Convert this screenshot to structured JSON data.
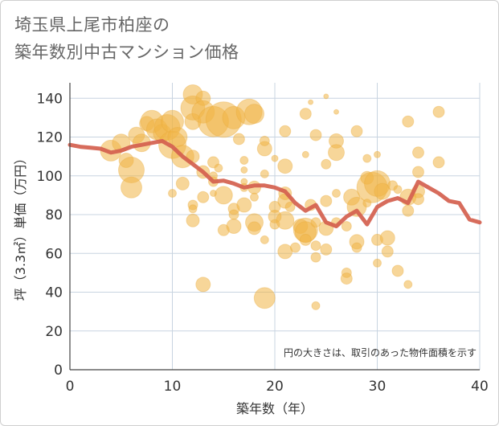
{
  "title_line1": "埼玉県上尾市柏座の",
  "title_line2": "築年数別中古マンション価格",
  "chart_data": {
    "type": "scatter",
    "xlabel": "築年数（年）",
    "ylabel": "坪（3.3㎡）単価（万円）",
    "xlim": [
      0,
      40
    ],
    "ylim": [
      0,
      148
    ],
    "xticks": [
      "0",
      "10",
      "20",
      "30",
      "40"
    ],
    "yticks": [
      "0",
      "20",
      "40",
      "60",
      "80",
      "100",
      "120",
      "140"
    ],
    "note": "円の大きさは、取引のあった物件面積を示す",
    "colors": {
      "bubble": "#f1b545",
      "line": "#d4604e",
      "grid": "#c8d4e0"
    },
    "bubbles": [
      [
        4,
        113,
        13
      ],
      [
        5,
        117,
        11
      ],
      [
        5.5,
        108,
        9
      ],
      [
        6,
        103,
        16
      ],
      [
        6,
        94,
        13
      ],
      [
        6.5,
        121,
        10
      ],
      [
        7,
        117,
        11
      ],
      [
        7.5,
        127,
        9
      ],
      [
        8,
        128,
        14
      ],
      [
        8.5,
        124,
        13
      ],
      [
        9,
        122,
        11
      ],
      [
        9.5,
        125,
        16
      ],
      [
        10,
        128,
        14
      ],
      [
        10,
        116,
        17
      ],
      [
        10.5,
        120,
        12
      ],
      [
        10,
        91,
        5
      ],
      [
        11,
        110,
        14
      ],
      [
        11,
        96,
        8
      ],
      [
        12,
        142,
        12
      ],
      [
        12,
        135,
        15
      ],
      [
        12,
        128,
        10
      ],
      [
        12,
        110,
        8
      ],
      [
        12,
        85,
        6
      ],
      [
        12,
        83,
        5
      ],
      [
        12,
        77,
        8
      ],
      [
        13,
        140,
        9
      ],
      [
        13,
        133,
        14
      ],
      [
        13,
        102,
        8
      ],
      [
        13,
        89,
        7
      ],
      [
        13,
        44,
        9
      ],
      [
        14,
        128,
        19
      ],
      [
        14,
        107,
        7
      ],
      [
        14,
        100,
        5
      ],
      [
        14,
        97,
        6
      ],
      [
        14,
        91,
        4
      ],
      [
        14.5,
        104,
        5
      ],
      [
        15,
        129,
        22
      ],
      [
        15,
        90,
        11
      ],
      [
        15,
        72,
        7
      ],
      [
        16,
        130,
        14
      ],
      [
        16,
        83,
        7
      ],
      [
        16,
        80,
        6
      ],
      [
        16,
        74,
        9
      ],
      [
        16.5,
        119,
        7
      ],
      [
        17,
        108,
        5
      ],
      [
        17,
        103,
        4
      ],
      [
        17,
        97,
        4
      ],
      [
        17,
        85,
        9
      ],
      [
        17,
        94,
        5
      ],
      [
        17.5,
        133,
        16
      ],
      [
        18,
        132,
        12
      ],
      [
        18,
        94,
        8
      ],
      [
        18,
        89,
        5
      ],
      [
        18,
        76,
        11
      ],
      [
        18,
        73,
        8
      ],
      [
        19,
        37,
        13
      ],
      [
        19,
        67,
        5
      ],
      [
        19,
        101,
        5
      ],
      [
        19,
        114,
        9
      ],
      [
        19,
        118,
        6
      ],
      [
        20,
        84,
        7
      ],
      [
        20,
        79,
        8
      ],
      [
        20,
        75,
        6
      ],
      [
        20,
        109,
        4
      ],
      [
        21,
        123,
        7
      ],
      [
        21,
        105,
        9
      ],
      [
        21,
        91,
        8
      ],
      [
        21,
        87,
        9
      ],
      [
        21,
        77,
        11
      ],
      [
        21,
        61,
        9
      ],
      [
        21.5,
        84,
        6
      ],
      [
        22,
        63,
        6
      ],
      [
        22.5,
        74,
        9
      ],
      [
        23,
        72,
        15
      ],
      [
        23,
        71,
        13
      ],
      [
        23,
        67,
        7
      ],
      [
        23,
        132,
        7
      ],
      [
        23,
        111,
        4
      ],
      [
        23.5,
        85,
        7
      ],
      [
        23.5,
        138,
        3
      ],
      [
        24,
        121,
        7
      ],
      [
        24,
        76,
        6
      ],
      [
        24,
        64,
        6
      ],
      [
        24,
        58,
        6
      ],
      [
        24,
        33,
        5
      ],
      [
        25,
        141,
        3
      ],
      [
        25,
        106,
        6
      ],
      [
        25,
        87,
        7
      ],
      [
        25,
        73,
        9
      ],
      [
        25,
        62,
        7
      ],
      [
        26,
        118,
        9
      ],
      [
        26,
        112,
        10
      ],
      [
        26,
        91,
        5
      ],
      [
        26,
        76,
        6
      ],
      [
        26,
        133,
        3
      ],
      [
        27,
        50,
        6
      ],
      [
        27,
        47,
        7
      ],
      [
        27,
        74,
        6
      ],
      [
        27.5,
        89,
        10
      ],
      [
        28,
        123,
        7
      ],
      [
        28,
        84,
        12
      ],
      [
        28,
        66,
        9
      ],
      [
        28,
        63,
        6
      ],
      [
        29,
        109,
        5
      ],
      [
        29,
        99,
        8
      ],
      [
        29,
        86,
        5
      ],
      [
        29.5,
        94,
        19
      ],
      [
        30,
        96,
        16
      ],
      [
        30,
        111,
        4
      ],
      [
        30,
        67,
        7
      ],
      [
        30,
        55,
        5
      ],
      [
        30.5,
        92,
        10
      ],
      [
        31,
        68,
        9
      ],
      [
        31,
        61,
        7
      ],
      [
        31.5,
        95,
        6
      ],
      [
        32,
        51,
        7
      ],
      [
        32,
        93,
        5
      ],
      [
        33,
        128,
        7
      ],
      [
        33,
        89,
        10
      ],
      [
        33,
        82,
        7
      ],
      [
        33,
        44,
        5
      ],
      [
        34,
        112,
        7
      ],
      [
        34,
        102,
        7
      ],
      [
        34,
        92,
        8
      ],
      [
        34,
        88,
        7
      ],
      [
        36,
        133,
        7
      ],
      [
        36,
        107,
        7
      ]
    ],
    "trend": [
      [
        0,
        116
      ],
      [
        1,
        115
      ],
      [
        2,
        114.5
      ],
      [
        3,
        114
      ],
      [
        4,
        112
      ],
      [
        5,
        113
      ],
      [
        6,
        115
      ],
      [
        7,
        116
      ],
      [
        8,
        117
      ],
      [
        9,
        118
      ],
      [
        10,
        115
      ],
      [
        11,
        110
      ],
      [
        12,
        106
      ],
      [
        13,
        102
      ],
      [
        14,
        97
      ],
      [
        15,
        97.5
      ],
      [
        16,
        96
      ],
      [
        17,
        94
      ],
      [
        18,
        95
      ],
      [
        19,
        95
      ],
      [
        20,
        94
      ],
      [
        21,
        92
      ],
      [
        22,
        86
      ],
      [
        23,
        82
      ],
      [
        24,
        85
      ],
      [
        25,
        76
      ],
      [
        26,
        74
      ],
      [
        27,
        79
      ],
      [
        28,
        82
      ],
      [
        29,
        75
      ],
      [
        30,
        84
      ],
      [
        31,
        87
      ],
      [
        32,
        88.5
      ],
      [
        33,
        86
      ],
      [
        34,
        97
      ],
      [
        35,
        94
      ],
      [
        36,
        91
      ],
      [
        37,
        87
      ],
      [
        38,
        86
      ],
      [
        39,
        77.5
      ],
      [
        40,
        76
      ]
    ]
  }
}
